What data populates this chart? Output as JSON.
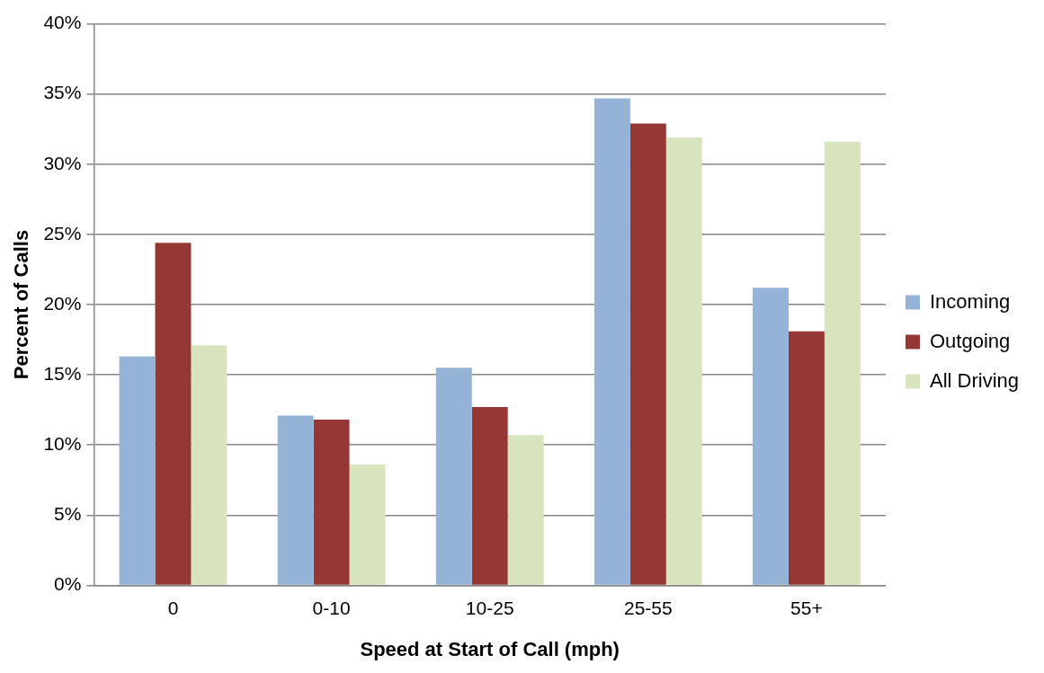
{
  "chart_data": {
    "type": "bar",
    "xlabel": "Speed at Start of Call (mph)",
    "ylabel": "Percent of Calls",
    "categories": [
      "0",
      "0-10",
      "10-25",
      "25-55",
      "55+"
    ],
    "series": [
      {
        "name": "Incoming",
        "color": "#95b3d7",
        "values": [
          16.3,
          12.1,
          15.5,
          34.7,
          21.2
        ]
      },
      {
        "name": "Outgoing",
        "color": "#953735",
        "values": [
          24.4,
          11.8,
          12.7,
          32.9,
          18.1
        ]
      },
      {
        "name": "All Driving",
        "color": "#d7e4bd",
        "values": [
          17.1,
          8.6,
          10.7,
          31.9,
          31.6
        ]
      }
    ],
    "ylim": [
      0,
      40
    ],
    "yticks": [
      {
        "value": 0,
        "label": "0%"
      },
      {
        "value": 5,
        "label": "5%"
      },
      {
        "value": 10,
        "label": "10%"
      },
      {
        "value": 15,
        "label": "15%"
      },
      {
        "value": 20,
        "label": "20%"
      },
      {
        "value": 25,
        "label": "25%"
      },
      {
        "value": 30,
        "label": "30%"
      },
      {
        "value": 35,
        "label": "35%"
      },
      {
        "value": 40,
        "label": "40%"
      }
    ],
    "grid": "y",
    "legend": "right"
  }
}
